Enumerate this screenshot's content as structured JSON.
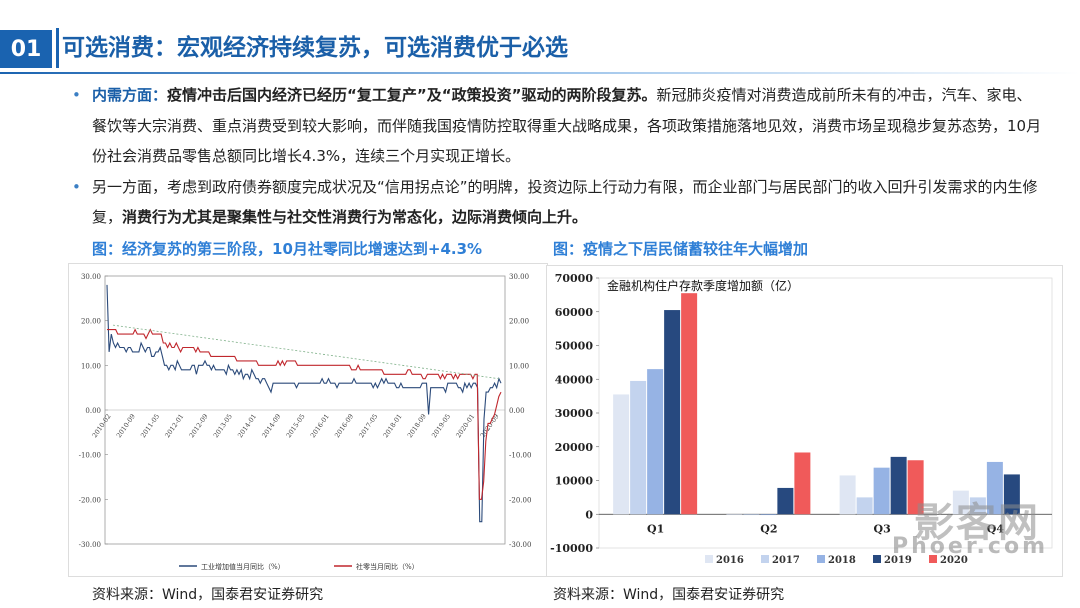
{
  "header": {
    "number": "01",
    "title": "可选消费：宏观经济持续复苏，可选消费优于必选"
  },
  "bullets": [
    {
      "highlight": "内需方面：",
      "bold": "疫情冲击后国内经济已经历“复工复产”及“政策投资”驱动的两阶段复苏。",
      "text": "新冠肺炎疫情对消费造成前所未有的冲击，汽车、家电、餐饮等大宗消费、重点消费受到较大影响，而伴随我国疫情防控取得重大战略成果，各项政策措施落地见效，消费市场呈现稳步复苏态势，10月份社会消费品零售总额同比增长4.3%，连续三个月实现正增长。"
    },
    {
      "text": "另一方面，考虑到政府债券额度完成状况及“信用拐点论”的明牌，投资边际上行动力有限，而企业部门与居民部门的收入回升引发需求的内生修复，",
      "bold": "消费行为尤其是聚集性与社交性消费行为常态化，边际消费倾向上升。"
    }
  ],
  "left_figure": {
    "caption": "图：经济复苏的第三阶段，10月社零同比增速达到+4.3%",
    "source": "资料来源：Wind，国泰君安证券研究"
  },
  "right_figure": {
    "caption": "图：疫情之下居民储蓄较往年大幅增加",
    "source": "资料来源：Wind，国泰君安证券研究"
  },
  "watermark": {
    "text": "影客网",
    "sub": "Phoer.com"
  },
  "chart_data": [
    {
      "type": "line",
      "title": "",
      "y_ticks_left": [
        "30.00",
        "20.00",
        "10.00",
        "0.00",
        "-10.00",
        "-20.00",
        "-30.00"
      ],
      "y_ticks_right": [
        "30.00",
        "20.00",
        "10.00",
        "0.00",
        "-10.00",
        "-20.00",
        "-30.00"
      ],
      "ylim": [
        -30,
        30
      ],
      "x_ticks": [
        "2010-02",
        "2010-09",
        "2011-05",
        "2012-01",
        "2012-09",
        "2013-05",
        "2014-01",
        "2014-09",
        "2015-05",
        "2016-01",
        "2016-09",
        "2017-05",
        "2018-01",
        "2018-09",
        "2019-05",
        "2020-01",
        "2020-09"
      ],
      "series": [
        {
          "name": "工业增加值当月同比（%）",
          "color": "#2b4a7a",
          "values": [
            28,
            13,
            17,
            15,
            14,
            15,
            14,
            14,
            14,
            13,
            14,
            14,
            13,
            13,
            13,
            13,
            15,
            14,
            13,
            14,
            14,
            12,
            12,
            13,
            13,
            14,
            12,
            10,
            10,
            9,
            10,
            10,
            9,
            11,
            10,
            9,
            9,
            9,
            9,
            9,
            10,
            10,
            8,
            10,
            10,
            10,
            11,
            10,
            10,
            9,
            10,
            9,
            9,
            9,
            9,
            9,
            8,
            10,
            9,
            9,
            8,
            9,
            8,
            9,
            7,
            8,
            8,
            7,
            9,
            8,
            7,
            7,
            6,
            7,
            7,
            6,
            5,
            4,
            6,
            6,
            6,
            6,
            6,
            6,
            6,
            6,
            6,
            6,
            6,
            5,
            6,
            6,
            6,
            6,
            6,
            6,
            6,
            6,
            6,
            6,
            6,
            7,
            6,
            6,
            7,
            6,
            6,
            6,
            5,
            6,
            6,
            6,
            6,
            6,
            6,
            6,
            7,
            6,
            6,
            6,
            6,
            6,
            6,
            6,
            6,
            5,
            6,
            5,
            6,
            7,
            6,
            7,
            6,
            6,
            6,
            6,
            5,
            5,
            6,
            5,
            5,
            5,
            5,
            5,
            5,
            5,
            5,
            5,
            6,
            6,
            6,
            -1,
            5,
            5,
            5,
            5,
            5,
            5,
            5,
            4,
            6,
            6,
            6,
            6,
            6,
            5,
            5,
            4,
            6,
            5,
            6,
            5,
            6,
            6,
            5,
            -25,
            -25,
            -2,
            4,
            4,
            5,
            5,
            6,
            5,
            7,
            6
          ]
        },
        {
          "name": "社零当月同比（%）",
          "color": "#c0272d",
          "values": [
            18,
            18,
            18,
            18,
            18,
            17,
            17,
            17,
            17,
            17,
            17,
            17,
            17,
            18,
            17,
            17,
            17,
            17,
            16,
            17,
            18,
            17,
            17,
            17,
            17,
            17,
            15,
            15,
            14,
            15,
            14,
            14,
            15,
            14,
            13,
            14,
            14,
            14,
            14,
            14,
            14,
            13,
            14,
            13,
            13,
            13,
            13,
            13,
            12,
            12,
            12,
            12,
            12,
            12,
            12,
            12,
            12,
            12,
            12,
            12,
            11,
            11,
            11,
            11,
            11,
            11,
            11,
            11,
            11,
            11,
            10,
            10,
            10,
            10,
            10,
            10,
            10,
            10,
            10,
            11,
            10,
            11,
            10,
            11,
            11,
            11,
            11,
            11,
            10,
            10,
            10,
            10,
            10,
            10,
            10,
            10,
            10,
            10,
            10,
            10,
            10,
            10,
            10,
            10,
            10,
            10,
            10,
            10,
            10,
            10,
            10,
            10,
            10,
            9,
            9,
            9,
            10,
            9,
            9,
            9,
            9,
            9,
            9,
            9,
            9,
            9,
            9,
            9,
            8,
            8,
            8,
            8,
            8,
            8,
            8,
            8,
            8,
            8,
            8,
            9,
            9,
            8,
            8,
            8,
            8,
            8,
            7,
            7,
            8,
            8,
            8,
            8,
            8,
            8,
            7,
            8,
            7,
            8,
            8,
            8,
            7,
            8,
            7,
            8,
            8,
            8,
            8,
            8,
            8,
            7,
            8,
            8,
            -20,
            -20,
            -16,
            -7,
            -3,
            -3,
            -2,
            -1,
            1,
            3,
            4
          ]
        }
      ]
    },
    {
      "type": "bar",
      "title": "金融机构住户存款季度增加额（亿）",
      "categories": [
        "Q1",
        "Q2",
        "Q3",
        "Q4"
      ],
      "ylim": [
        -10000,
        70000
      ],
      "y_ticks": [
        "70000",
        "60000",
        "50000",
        "40000",
        "30000",
        "20000",
        "10000",
        "0",
        "-10000"
      ],
      "series": [
        {
          "name": "2016",
          "color": "#dfe6f3",
          "values": [
            35500,
            0,
            11500,
            7000
          ]
        },
        {
          "name": "2017",
          "color": "#c3d3ee",
          "values": [
            39500,
            0,
            5000,
            5000
          ]
        },
        {
          "name": "2018",
          "color": "#96b3e4",
          "values": [
            43000,
            0,
            13800,
            15500
          ]
        },
        {
          "name": "2019",
          "color": "#27497f",
          "values": [
            60500,
            7800,
            17000,
            11800
          ]
        },
        {
          "name": "2020",
          "color": "#f05a5a",
          "values": [
            65500,
            18300,
            16000,
            null
          ]
        }
      ]
    }
  ]
}
